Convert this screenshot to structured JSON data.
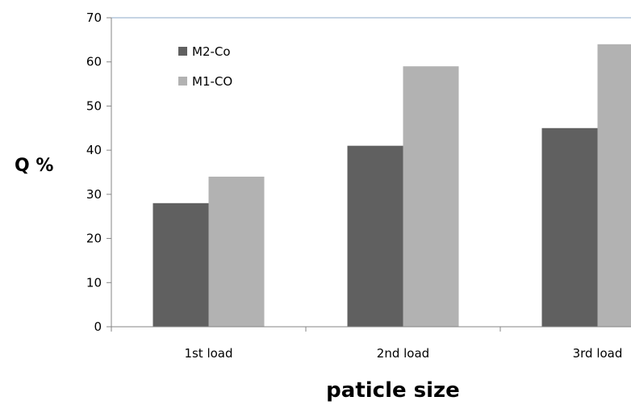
{
  "chart_data": {
    "type": "bar",
    "title": "",
    "xlabel": "paticle size",
    "ylabel": "Q %",
    "ylim": [
      0,
      70
    ],
    "yticks": [
      0,
      10,
      20,
      30,
      40,
      50,
      60,
      70
    ],
    "categories": [
      "1st load",
      "2nd load",
      "3rd load"
    ],
    "series": [
      {
        "name": "M2-Co",
        "values": [
          28,
          41,
          45
        ],
        "color": "#606060"
      },
      {
        "name": "M1-CO",
        "values": [
          34,
          59,
          64
        ],
        "color": "#b2b2b2"
      }
    ],
    "grid": false,
    "legend_position": "top-left"
  }
}
